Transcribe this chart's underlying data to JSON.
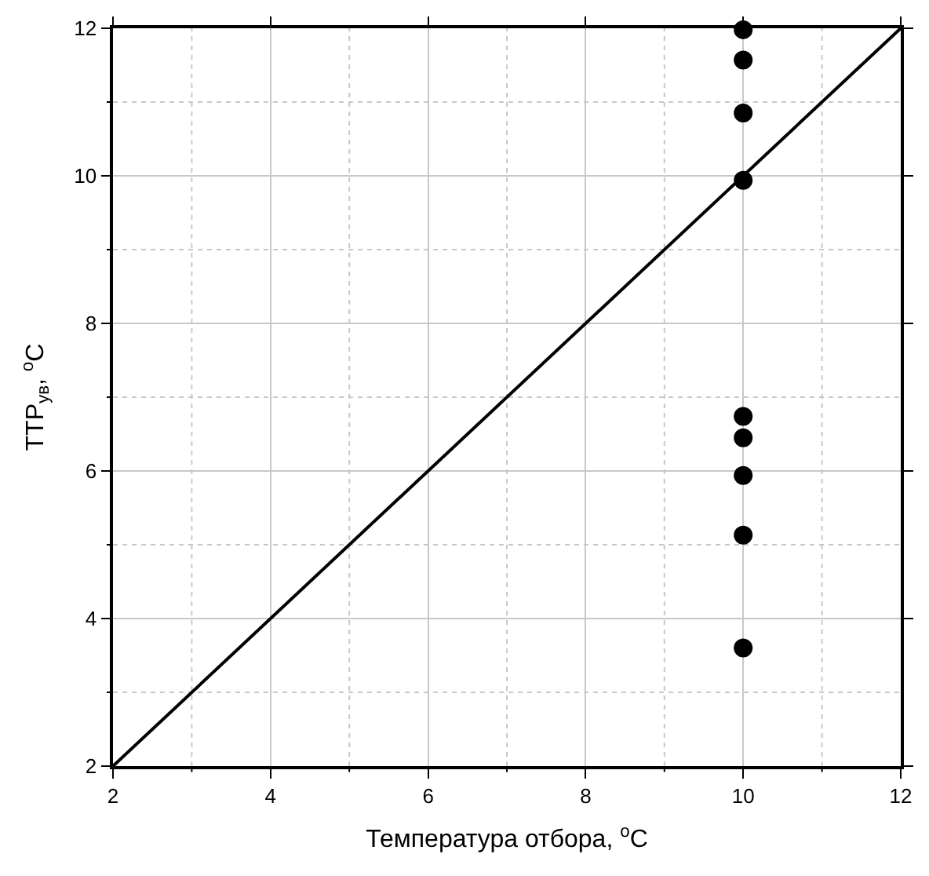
{
  "chart_data": {
    "type": "scatter",
    "xlabel": "Температура отбора, $^{o}$C",
    "ylabel": "ТТР$_{ув}$, $^{o}$C",
    "series": [
      {
        "color": "#000000",
        "marker": "circle",
        "x": [
          10,
          10,
          10,
          10,
          10,
          10,
          10,
          10,
          10
        ],
        "values": [
          11.98,
          11.57,
          10.85,
          9.94,
          6.74,
          6.45,
          5.94,
          5.13,
          3.6
        ]
      },
      {
        "type": "line",
        "color": "#000000",
        "marker": "none",
        "line_style": "solid",
        "x": [
          2,
          12
        ],
        "values": [
          2,
          12
        ]
      }
    ],
    "xlim": [
      2,
      12
    ],
    "ylim": [
      2,
      12
    ],
    "xticks": [
      2,
      {
        "value": 3,
        "label": null
      },
      4,
      {
        "value": 5,
        "label": null
      },
      6,
      {
        "value": 7,
        "label": null
      },
      8,
      {
        "value": 9,
        "label": null
      },
      10,
      {
        "value": 11,
        "label": null
      },
      12
    ],
    "yticks": [
      2,
      {
        "value": 3,
        "label": null
      },
      4,
      {
        "value": 5,
        "label": null
      },
      6,
      {
        "value": 7,
        "label": null
      },
      8,
      {
        "value": 9,
        "label": null
      },
      10,
      {
        "value": 11,
        "label": null
      },
      12
    ],
    "grid": true
  }
}
